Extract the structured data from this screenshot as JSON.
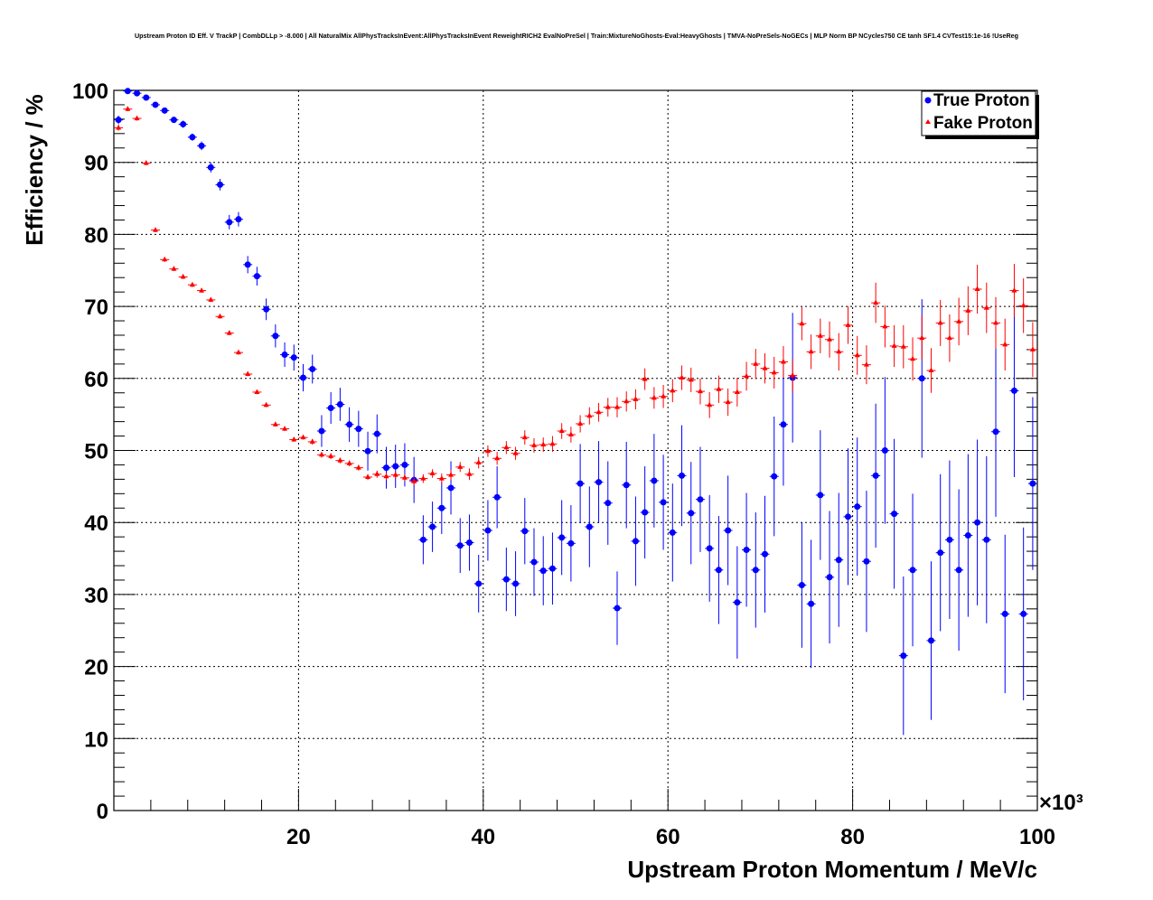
{
  "chart_data": {
    "type": "scatter",
    "title": "Upstream Proton ID Eff. V TrackP | CombDLLp > -8.000 | All NaturalMix AllPhysTracksInEvent:AllPhysTracksInEvent ReweightRICH2 EvalNoPreSel | Train:MixtureNoGhosts-Eval:HeavyGhosts | TMVA-NoPreSels-NoGECs | MLP Norm BP NCycles750 CE tanh SF1.4 CVTest15:1e-16 !UseReg",
    "xlabel": "Upstream Proton Momentum / MeV/c",
    "ylabel": "Efficiency / %",
    "x_multiplier": "×10³",
    "xlim": [
      0,
      100
    ],
    "ylim": [
      0,
      100
    ],
    "x_ticks": [
      20,
      40,
      60,
      80,
      100
    ],
    "y_ticks": [
      0,
      10,
      20,
      30,
      40,
      50,
      60,
      70,
      80,
      90,
      100
    ],
    "grid": true,
    "legend_position": "top-right",
    "series": [
      {
        "name": "True Proton",
        "color": "#0000ff",
        "marker": "circle",
        "points": [
          [
            0.5,
            95.9,
            0.6
          ],
          [
            1.5,
            99.9,
            0.3
          ],
          [
            2.5,
            99.6,
            0.3
          ],
          [
            3.5,
            99.0,
            0.3
          ],
          [
            4.5,
            98.0,
            0.4
          ],
          [
            5.5,
            97.2,
            0.4
          ],
          [
            6.5,
            95.9,
            0.4
          ],
          [
            7.5,
            95.3,
            0.5
          ],
          [
            8.5,
            93.5,
            0.5
          ],
          [
            9.5,
            92.3,
            0.6
          ],
          [
            10.5,
            89.3,
            0.7
          ],
          [
            11.5,
            86.9,
            0.8
          ],
          [
            12.5,
            81.7,
            1.0
          ],
          [
            13.5,
            82.1,
            1.0
          ],
          [
            14.5,
            75.8,
            1.2
          ],
          [
            15.5,
            74.2,
            1.3
          ],
          [
            16.5,
            69.6,
            1.5
          ],
          [
            17.5,
            65.9,
            1.6
          ],
          [
            18.5,
            63.3,
            1.7
          ],
          [
            19.5,
            62.9,
            1.8
          ],
          [
            20.5,
            60.1,
            1.9
          ],
          [
            21.5,
            61.3,
            2.0
          ],
          [
            22.5,
            52.7,
            2.2
          ],
          [
            23.5,
            55.9,
            2.2
          ],
          [
            24.5,
            56.4,
            2.3
          ],
          [
            25.5,
            53.6,
            2.4
          ],
          [
            26.5,
            53.0,
            2.5
          ],
          [
            27.5,
            49.9,
            2.7
          ],
          [
            28.5,
            52.3,
            2.7
          ],
          [
            29.5,
            47.6,
            2.9
          ],
          [
            30.5,
            47.8,
            3.0
          ],
          [
            31.5,
            48.0,
            3.0
          ],
          [
            32.5,
            45.9,
            3.2
          ],
          [
            33.5,
            37.6,
            3.4
          ],
          [
            34.5,
            39.4,
            3.5
          ],
          [
            35.5,
            42.0,
            3.6
          ],
          [
            36.5,
            44.8,
            3.7
          ],
          [
            37.5,
            36.8,
            3.8
          ],
          [
            38.5,
            37.2,
            3.9
          ],
          [
            39.5,
            31.5,
            4.0
          ],
          [
            40.5,
            38.9,
            4.2
          ],
          [
            41.5,
            43.5,
            4.3
          ],
          [
            42.5,
            32.1,
            4.4
          ],
          [
            43.5,
            31.5,
            4.5
          ],
          [
            44.5,
            38.8,
            4.6
          ],
          [
            45.5,
            34.5,
            4.7
          ],
          [
            46.5,
            33.3,
            4.8
          ],
          [
            47.5,
            33.6,
            5.0
          ],
          [
            48.5,
            37.9,
            5.2
          ],
          [
            49.5,
            37.1,
            5.3
          ],
          [
            50.5,
            45.4,
            5.5
          ],
          [
            51.5,
            39.4,
            5.6
          ],
          [
            52.5,
            45.6,
            5.7
          ],
          [
            53.5,
            42.7,
            5.8
          ],
          [
            54.5,
            28.1,
            5.1
          ],
          [
            55.5,
            45.2,
            6.0
          ],
          [
            56.5,
            37.4,
            6.2
          ],
          [
            57.5,
            41.4,
            6.4
          ],
          [
            58.5,
            45.8,
            6.5
          ],
          [
            59.5,
            42.8,
            6.6
          ],
          [
            60.5,
            38.6,
            6.8
          ],
          [
            61.5,
            46.5,
            7.0
          ],
          [
            62.5,
            41.3,
            7.1
          ],
          [
            63.5,
            43.2,
            7.3
          ],
          [
            64.5,
            36.4,
            7.4
          ],
          [
            65.5,
            33.4,
            7.5
          ],
          [
            66.5,
            38.9,
            7.6
          ],
          [
            67.5,
            28.9,
            7.8
          ],
          [
            68.5,
            36.2,
            7.9
          ],
          [
            69.5,
            33.4,
            8.0
          ],
          [
            70.5,
            35.6,
            8.1
          ],
          [
            71.5,
            46.4,
            8.3
          ],
          [
            72.5,
            53.6,
            8.5
          ],
          [
            73.5,
            60.1,
            9.0
          ],
          [
            74.5,
            31.3,
            8.7
          ],
          [
            75.5,
            28.7,
            8.9
          ],
          [
            76.5,
            43.8,
            9.0
          ],
          [
            77.5,
            32.4,
            9.2
          ],
          [
            78.5,
            34.8,
            9.3
          ],
          [
            79.5,
            40.8,
            9.5
          ],
          [
            80.5,
            42.2,
            9.6
          ],
          [
            81.5,
            34.6,
            9.8
          ],
          [
            82.5,
            46.5,
            10.0
          ],
          [
            83.5,
            50.0,
            10.2
          ],
          [
            84.5,
            41.2,
            10.4
          ],
          [
            85.5,
            21.5,
            11.0
          ],
          [
            86.5,
            33.4,
            10.6
          ],
          [
            87.5,
            60.0,
            11.0
          ],
          [
            88.5,
            23.6,
            11.0
          ],
          [
            89.5,
            35.8,
            10.9
          ],
          [
            90.5,
            37.6,
            11.0
          ],
          [
            91.5,
            33.4,
            11.2
          ],
          [
            92.5,
            38.2,
            11.3
          ],
          [
            93.5,
            40.0,
            11.5
          ],
          [
            94.5,
            37.6,
            11.6
          ],
          [
            95.5,
            52.6,
            11.8
          ],
          [
            96.5,
            27.3,
            11.0
          ],
          [
            97.5,
            58.3,
            12.0
          ],
          [
            98.5,
            27.3,
            12.0
          ],
          [
            99.5,
            45.4,
            12.0
          ]
        ]
      },
      {
        "name": "Fake Proton",
        "color": "#ff0000",
        "marker": "triangle",
        "points": [
          [
            0.5,
            94.8,
            0.4
          ],
          [
            1.5,
            97.4,
            0.3
          ],
          [
            2.5,
            96.1,
            0.3
          ],
          [
            3.5,
            89.9,
            0.3
          ],
          [
            4.5,
            80.6,
            0.3
          ],
          [
            5.5,
            76.5,
            0.3
          ],
          [
            6.5,
            75.2,
            0.3
          ],
          [
            7.5,
            74.1,
            0.3
          ],
          [
            8.5,
            73.0,
            0.3
          ],
          [
            9.5,
            72.2,
            0.3
          ],
          [
            10.5,
            70.9,
            0.3
          ],
          [
            11.5,
            68.6,
            0.3
          ],
          [
            12.5,
            66.3,
            0.3
          ],
          [
            13.5,
            63.6,
            0.3
          ],
          [
            14.5,
            60.6,
            0.3
          ],
          [
            15.5,
            58.1,
            0.3
          ],
          [
            16.5,
            56.3,
            0.3
          ],
          [
            17.5,
            53.6,
            0.3
          ],
          [
            18.5,
            53.0,
            0.3
          ],
          [
            19.5,
            51.5,
            0.3
          ],
          [
            20.5,
            51.8,
            0.3
          ],
          [
            21.5,
            51.2,
            0.4
          ],
          [
            22.5,
            49.4,
            0.4
          ],
          [
            23.5,
            49.2,
            0.4
          ],
          [
            24.5,
            48.6,
            0.4
          ],
          [
            25.5,
            48.2,
            0.4
          ],
          [
            26.5,
            47.6,
            0.4
          ],
          [
            27.5,
            46.3,
            0.4
          ],
          [
            28.5,
            46.7,
            0.5
          ],
          [
            29.5,
            46.4,
            0.5
          ],
          [
            30.5,
            46.6,
            0.5
          ],
          [
            31.5,
            46.2,
            0.5
          ],
          [
            32.5,
            45.7,
            0.6
          ],
          [
            33.5,
            46.1,
            0.6
          ],
          [
            34.5,
            46.8,
            0.6
          ],
          [
            35.5,
            46.1,
            0.7
          ],
          [
            36.5,
            46.6,
            0.7
          ],
          [
            37.5,
            47.7,
            0.7
          ],
          [
            38.5,
            46.7,
            0.8
          ],
          [
            39.5,
            48.3,
            0.8
          ],
          [
            40.5,
            49.9,
            0.8
          ],
          [
            41.5,
            48.9,
            0.9
          ],
          [
            42.5,
            50.4,
            0.9
          ],
          [
            43.5,
            49.6,
            0.9
          ],
          [
            44.5,
            51.8,
            1.0
          ],
          [
            45.5,
            50.7,
            1.0
          ],
          [
            46.5,
            50.8,
            1.0
          ],
          [
            47.5,
            50.9,
            1.1
          ],
          [
            48.5,
            52.7,
            1.1
          ],
          [
            49.5,
            52.2,
            1.1
          ],
          [
            50.5,
            53.7,
            1.2
          ],
          [
            51.5,
            54.8,
            1.2
          ],
          [
            52.5,
            55.3,
            1.3
          ],
          [
            53.5,
            56.0,
            1.3
          ],
          [
            54.5,
            56.0,
            1.4
          ],
          [
            55.5,
            56.8,
            1.4
          ],
          [
            56.5,
            57.1,
            1.4
          ],
          [
            57.5,
            59.9,
            1.5
          ],
          [
            58.5,
            57.3,
            1.5
          ],
          [
            59.5,
            57.5,
            1.6
          ],
          [
            60.5,
            58.3,
            1.6
          ],
          [
            61.5,
            60.1,
            1.7
          ],
          [
            62.5,
            59.8,
            1.7
          ],
          [
            63.5,
            58.2,
            1.8
          ],
          [
            64.5,
            56.3,
            1.8
          ],
          [
            65.5,
            58.5,
            1.9
          ],
          [
            66.5,
            56.7,
            1.9
          ],
          [
            67.5,
            58.1,
            2.0
          ],
          [
            68.5,
            60.3,
            2.0
          ],
          [
            69.5,
            62.0,
            2.1
          ],
          [
            70.5,
            61.4,
            2.1
          ],
          [
            71.5,
            60.8,
            2.2
          ],
          [
            72.5,
            62.3,
            2.2
          ],
          [
            73.5,
            60.4,
            2.3
          ],
          [
            74.5,
            67.6,
            2.3
          ],
          [
            75.5,
            63.7,
            2.4
          ],
          [
            76.5,
            65.9,
            2.4
          ],
          [
            77.5,
            65.4,
            2.5
          ],
          [
            78.5,
            63.7,
            2.6
          ],
          [
            79.5,
            67.4,
            2.6
          ],
          [
            80.5,
            63.2,
            2.7
          ],
          [
            81.5,
            61.9,
            2.7
          ],
          [
            82.5,
            70.5,
            2.8
          ],
          [
            83.5,
            67.2,
            2.9
          ],
          [
            84.5,
            64.5,
            2.9
          ],
          [
            85.5,
            64.4,
            3.0
          ],
          [
            86.5,
            62.7,
            3.0
          ],
          [
            87.5,
            65.6,
            3.1
          ],
          [
            88.5,
            61.1,
            3.1
          ],
          [
            89.5,
            67.7,
            3.2
          ],
          [
            90.5,
            65.6,
            3.3
          ],
          [
            91.5,
            67.9,
            3.3
          ],
          [
            92.5,
            69.4,
            3.4
          ],
          [
            93.5,
            72.4,
            3.4
          ],
          [
            94.5,
            69.8,
            3.5
          ],
          [
            95.5,
            67.7,
            3.6
          ],
          [
            96.5,
            64.7,
            3.6
          ],
          [
            97.5,
            72.2,
            3.7
          ],
          [
            98.5,
            70.1,
            3.8
          ],
          [
            99.5,
            64.0,
            3.8
          ]
        ]
      }
    ]
  }
}
